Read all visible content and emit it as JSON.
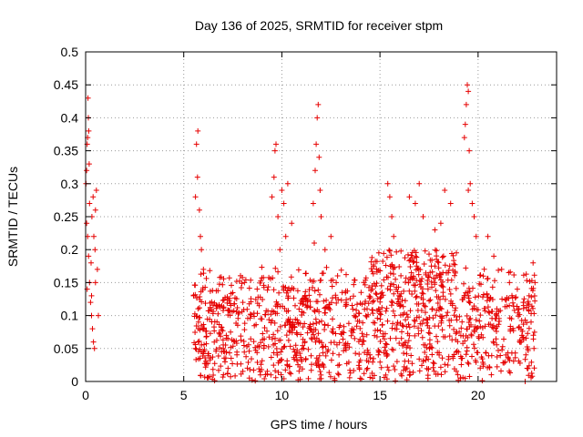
{
  "chart_data": {
    "type": "scatter",
    "title": "Day 136 of 2025, SRMTID for receiver stpm",
    "xlabel": "GPS time / hours",
    "ylabel": "SRMTID / TECUs",
    "xlim": [
      0,
      24
    ],
    "ylim": [
      0,
      0.5
    ],
    "x_ticks": [
      0,
      5,
      10,
      15,
      20
    ],
    "x_tick_labels": [
      "0",
      "5",
      "10",
      "15",
      "20"
    ],
    "y_ticks": [
      0,
      0.05,
      0.1,
      0.15,
      0.2,
      0.25,
      0.3,
      0.35,
      0.4,
      0.45,
      0.5
    ],
    "y_tick_labels": [
      "0",
      "0.05",
      "0.1",
      "0.15",
      "0.2",
      "0.25",
      "0.3",
      "0.35",
      "0.4",
      "0.45",
      "0.5"
    ],
    "grid": true,
    "marker": "+",
    "color": "#e60000",
    "series": [
      {
        "name": "SRMTID",
        "points": [
          [
            0.02,
            0.3
          ],
          [
            0.05,
            0.32
          ],
          [
            0.08,
            0.36
          ],
          [
            0.1,
            0.37
          ],
          [
            0.12,
            0.43
          ],
          [
            0.14,
            0.4
          ],
          [
            0.16,
            0.38
          ],
          [
            0.18,
            0.33
          ],
          [
            0.05,
            0.24
          ],
          [
            0.1,
            0.22
          ],
          [
            0.15,
            0.19
          ],
          [
            0.2,
            0.15
          ],
          [
            0.25,
            0.12
          ],
          [
            0.3,
            0.1
          ],
          [
            0.35,
            0.08
          ],
          [
            0.4,
            0.06
          ],
          [
            0.45,
            0.05
          ],
          [
            0.28,
            0.18
          ],
          [
            0.32,
            0.25
          ],
          [
            0.38,
            0.28
          ],
          [
            0.42,
            0.22
          ],
          [
            0.48,
            0.2
          ],
          [
            0.5,
            0.26
          ],
          [
            0.55,
            0.29
          ],
          [
            0.6,
            0.17
          ],
          [
            0.65,
            0.1
          ],
          [
            0.3,
            0.13
          ],
          [
            0.2,
            0.27
          ],
          [
            0.08,
            0.14
          ],
          [
            0.5,
            0.15
          ],
          [
            5.5,
            0.13
          ],
          [
            5.6,
            0.28
          ],
          [
            5.7,
            0.31
          ],
          [
            5.72,
            0.38
          ],
          [
            5.8,
            0.26
          ],
          [
            5.85,
            0.22
          ],
          [
            5.9,
            0.2
          ],
          [
            6.0,
            0.17
          ],
          [
            5.65,
            0.36
          ],
          [
            5.75,
            0.09
          ],
          [
            5.6,
            0.05
          ],
          [
            9.5,
            0.28
          ],
          [
            9.6,
            0.31
          ],
          [
            9.65,
            0.35
          ],
          [
            9.7,
            0.36
          ],
          [
            9.8,
            0.25
          ],
          [
            9.9,
            0.2
          ],
          [
            10.0,
            0.29
          ],
          [
            10.1,
            0.27
          ],
          [
            10.3,
            0.3
          ],
          [
            10.5,
            0.24
          ],
          [
            10.2,
            0.22
          ],
          [
            11.6,
            0.27
          ],
          [
            11.7,
            0.32
          ],
          [
            11.75,
            0.36
          ],
          [
            11.8,
            0.4
          ],
          [
            11.85,
            0.42
          ],
          [
            11.9,
            0.34
          ],
          [
            11.95,
            0.29
          ],
          [
            12.0,
            0.25
          ],
          [
            11.65,
            0.21
          ],
          [
            12.2,
            0.2
          ],
          [
            12.5,
            0.22
          ],
          [
            15.4,
            0.3
          ],
          [
            15.5,
            0.28
          ],
          [
            15.6,
            0.25
          ],
          [
            15.7,
            0.22
          ],
          [
            16.5,
            0.28
          ],
          [
            16.8,
            0.27
          ],
          [
            17.0,
            0.3
          ],
          [
            17.2,
            0.25
          ],
          [
            17.8,
            0.23
          ],
          [
            18.1,
            0.24
          ],
          [
            18.3,
            0.29
          ],
          [
            18.6,
            0.27
          ],
          [
            19.3,
            0.37
          ],
          [
            19.35,
            0.39
          ],
          [
            19.4,
            0.42
          ],
          [
            19.45,
            0.45
          ],
          [
            19.5,
            0.44
          ],
          [
            19.55,
            0.35
          ],
          [
            19.6,
            0.3
          ],
          [
            19.7,
            0.27
          ],
          [
            19.8,
            0.25
          ],
          [
            19.5,
            0.29
          ],
          [
            19.9,
            0.22
          ],
          [
            20.5,
            0.22
          ],
          [
            20.8,
            0.19
          ],
          [
            21.2,
            0.17
          ],
          [
            21.6,
            0.15
          ],
          [
            22.0,
            0.14
          ],
          [
            22.3,
            0.12
          ],
          [
            22.6,
            0.13
          ],
          [
            22.8,
            0.18
          ],
          [
            22.9,
            0.15
          ],
          [
            22.7,
            0.09
          ],
          [
            22.85,
            0.05
          ],
          [
            22.5,
            0.02
          ],
          [
            22.4,
            0.0
          ],
          [
            22.2,
            0.06
          ]
        ],
        "dense_region": {
          "x_range": [
            5.5,
            22.9
          ],
          "y_range": [
            0.0,
            0.2
          ],
          "density": "high"
        }
      }
    ]
  }
}
